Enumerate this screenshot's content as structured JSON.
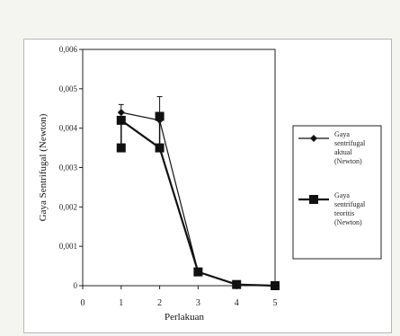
{
  "chart_data": {
    "type": "line",
    "title": "",
    "xlabel": "Perlakuan",
    "ylabel": "Gaya Sentrifugal (Newton)",
    "x": [
      1,
      2,
      3,
      4,
      5
    ],
    "xlim": [
      0,
      5
    ],
    "ylim": [
      0,
      0.006
    ],
    "x_ticks": [
      "0",
      "1",
      "2",
      "3",
      "4",
      "5"
    ],
    "y_ticks": [
      "0",
      "0,001",
      "0,002",
      "0,003",
      "0,004",
      "0,005",
      "0,006"
    ],
    "grid": false,
    "legend_position": "right",
    "series": [
      {
        "name": "Gaya sentrifugal aktual (Newton)",
        "values": [
          0.0044,
          0.0042,
          0.00035,
          3e-05,
          0.0
        ],
        "error_high": [
          0.0046,
          0.0048,
          null,
          null,
          null
        ],
        "color": "#111111",
        "marker": "diamond"
      },
      {
        "name": "Gaya sentrifugal teoritis (Newton)",
        "values": [
          0.0042,
          0.0035,
          0.00035,
          3e-05,
          0.0
        ],
        "extra_points": [
          {
            "x": 1,
            "y": 0.0035
          },
          {
            "x": 2,
            "y": 0.0043
          }
        ],
        "color": "#111111",
        "marker": "square"
      }
    ]
  },
  "legend": {
    "items": [
      {
        "label": "Gaya sentrifugal aktual (Newton)",
        "lines": [
          "Gaya",
          "sentrifugal",
          "aktual",
          "(Newton)"
        ]
      },
      {
        "label": "Gaya sentrifugal teoritis (Newton)",
        "lines": [
          "Gaya",
          "sentrifugal",
          "teoritis",
          "(Newton)"
        ]
      }
    ]
  }
}
